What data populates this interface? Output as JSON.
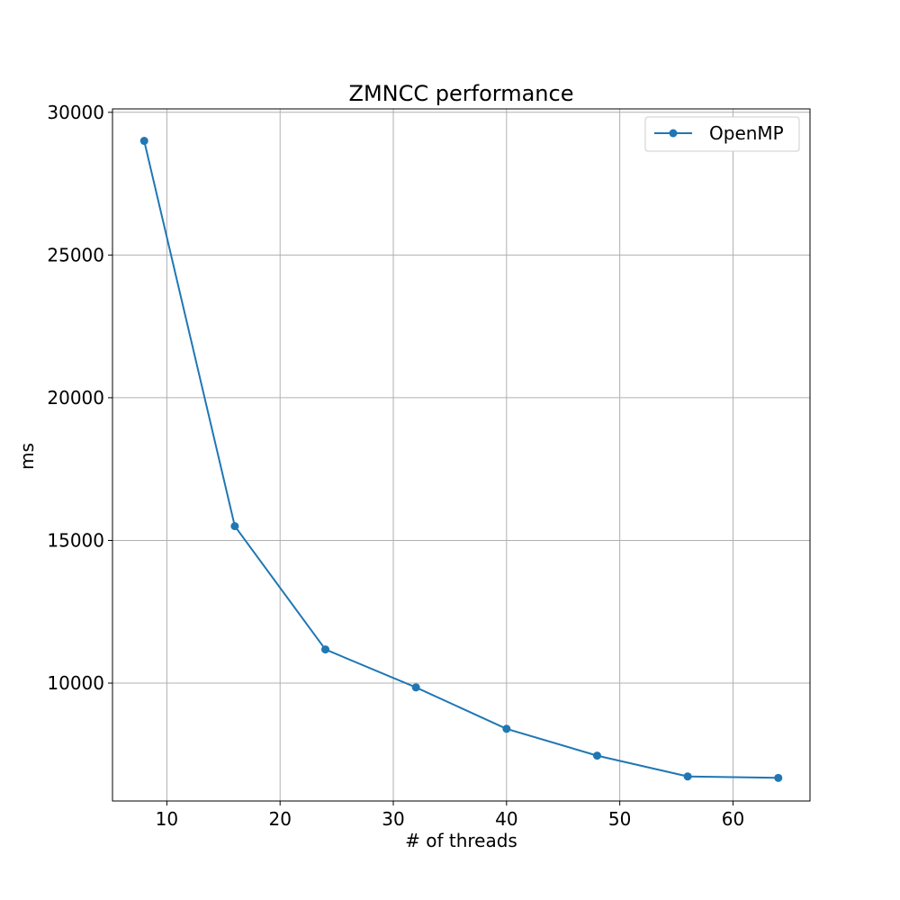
{
  "chart_data": {
    "type": "line",
    "title": "ZMNCC performance",
    "xlabel": "# of threads",
    "ylabel": "ms",
    "xlim": [
      5.2,
      66.8
    ],
    "ylim": [
      5870,
      30120
    ],
    "xticks": [
      10,
      20,
      30,
      40,
      50,
      60
    ],
    "yticks": [
      10000,
      15000,
      20000,
      25000,
      30000
    ],
    "grid": true,
    "legend_position": "top-right",
    "series": [
      {
        "name": "OpenMP",
        "color": "#1f77b4",
        "marker": "circle",
        "x": [
          8,
          16,
          24,
          32,
          40,
          48,
          56,
          64
        ],
        "y": [
          29000,
          15500,
          11180,
          9850,
          8400,
          7460,
          6730,
          6680
        ]
      }
    ]
  }
}
